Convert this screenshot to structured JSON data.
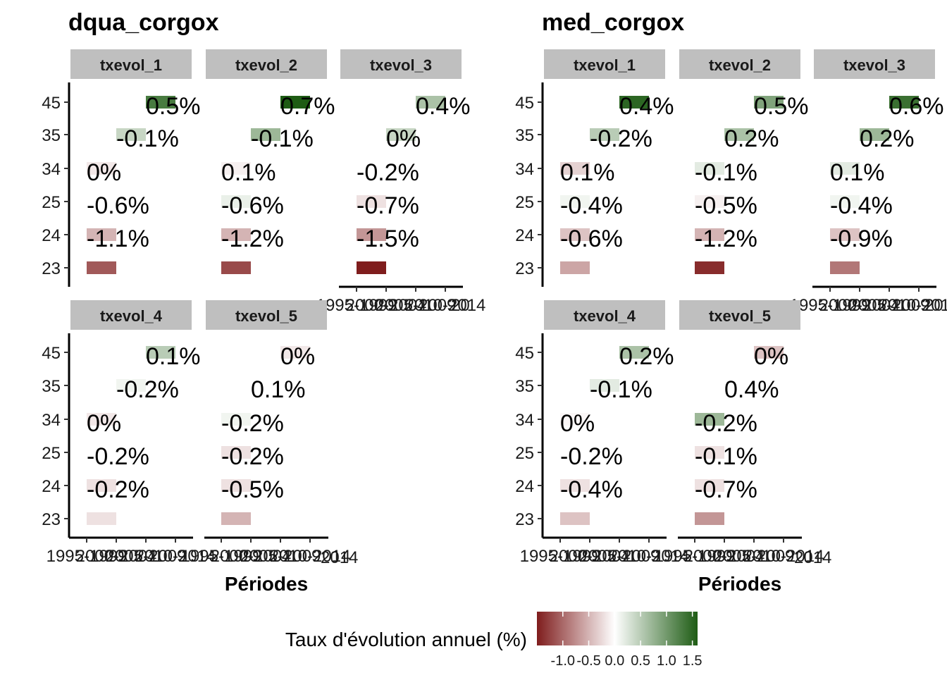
{
  "chart_data": {
    "type": "heatmap",
    "x_label": "Périodes",
    "y_categories": [
      "23",
      "24",
      "25",
      "34",
      "35",
      "45"
    ],
    "x_tick_labels": [
      "1995-1999",
      "2000-2004",
      "2005-2009",
      "2010-2014"
    ],
    "x_tick_labels_overflow": [
      "2014",
      "20"
    ],
    "legend": {
      "title": "Taux d'évolution annuel (%)",
      "ticks": [
        "-1.0",
        "-0.5",
        "0.0",
        "0.5",
        "1.0",
        "1.5"
      ],
      "tick_values": [
        -1.0,
        -0.5,
        0.0,
        0.5,
        1.0,
        1.5
      ],
      "range": [
        -1.5,
        1.6
      ],
      "colors": {
        "negative": "#7f1d1d",
        "zero": "#ffffff",
        "positive": "#1e5c14"
      }
    },
    "groups": [
      {
        "title": "dqua_corgox",
        "facets": [
          {
            "name": "txevol_1",
            "cells": [
              {
                "y": "45",
                "start": "2005-2009",
                "label": "0.5%",
                "value": 1.3
              },
              {
                "y": "35",
                "start": "2000-2004",
                "label": "-0.1%",
                "value": 0.4
              },
              {
                "y": "34",
                "start": "1995-1999",
                "label": "0%",
                "value": -0.15
              },
              {
                "y": "25",
                "start": "1995-1999",
                "label": "-0.6%",
                "value": 0.0
              },
              {
                "y": "24",
                "start": "1995-1999",
                "label": "-1.1%",
                "value": -0.5
              },
              {
                "y": "23",
                "start": "1995-1999",
                "label": "",
                "value": -1.1
              }
            ]
          },
          {
            "name": "txevol_2",
            "cells": [
              {
                "y": "45",
                "start": "2005-2009",
                "label": "0.7%",
                "value": 1.6
              },
              {
                "y": "35",
                "start": "2000-2004",
                "label": "-0.1%",
                "value": 0.7
              },
              {
                "y": "34",
                "start": "1995-1999",
                "label": "0.1%",
                "value": -0.1
              },
              {
                "y": "25",
                "start": "1995-1999",
                "label": "-0.6%",
                "value": 0.15
              },
              {
                "y": "24",
                "start": "1995-1999",
                "label": "-1.2%",
                "value": -0.5
              },
              {
                "y": "23",
                "start": "1995-1999",
                "label": "",
                "value": -1.2
              }
            ]
          },
          {
            "name": "txevol_3",
            "cells": [
              {
                "y": "45",
                "start": "2005-2009",
                "label": "0.4%",
                "value": 0.6
              },
              {
                "y": "35",
                "start": "2000-2004",
                "label": "0%",
                "value": 0.4
              },
              {
                "y": "34",
                "start": "1995-1999",
                "label": "-0.2%",
                "value": 0.0
              },
              {
                "y": "25",
                "start": "1995-1999",
                "label": "-0.7%",
                "value": -0.2
              },
              {
                "y": "24",
                "start": "1995-1999",
                "label": "-1.5%",
                "value": -0.7
              },
              {
                "y": "23",
                "start": "1995-1999",
                "label": "",
                "value": -1.5
              }
            ]
          },
          {
            "name": "txevol_4",
            "cells": [
              {
                "y": "45",
                "start": "2005-2009",
                "label": "0.1%",
                "value": 0.5
              },
              {
                "y": "35",
                "start": "2000-2004",
                "label": "-0.2%",
                "value": 0.1
              },
              {
                "y": "34",
                "start": "1995-1999",
                "label": "0%",
                "value": -0.15
              },
              {
                "y": "25",
                "start": "1995-1999",
                "label": "-0.2%",
                "value": 0.0
              },
              {
                "y": "24",
                "start": "1995-1999",
                "label": "-0.2%",
                "value": -0.2
              },
              {
                "y": "23",
                "start": "1995-1999",
                "label": "",
                "value": -0.2
              }
            ]
          },
          {
            "name": "txevol_5",
            "cells": [
              {
                "y": "45",
                "start": "2005-2009",
                "label": "0%",
                "value": -0.15
              },
              {
                "y": "35",
                "start": "2000-2004",
                "label": "0.1%",
                "value": 0.0
              },
              {
                "y": "34",
                "start": "1995-1999",
                "label": "-0.2%",
                "value": 0.1
              },
              {
                "y": "25",
                "start": "1995-1999",
                "label": "-0.2%",
                "value": -0.2
              },
              {
                "y": "24",
                "start": "1995-1999",
                "label": "-0.5%",
                "value": -0.2
              },
              {
                "y": "23",
                "start": "1995-1999",
                "label": "",
                "value": -0.5
              }
            ]
          }
        ]
      },
      {
        "title": "med_corgox",
        "facets": [
          {
            "name": "txevol_1",
            "cells": [
              {
                "y": "45",
                "start": "2005-2009",
                "label": "0.4%",
                "value": 1.5
              },
              {
                "y": "35",
                "start": "2000-2004",
                "label": "-0.2%",
                "value": 0.5
              },
              {
                "y": "34",
                "start": "1995-1999",
                "label": "0.1%",
                "value": -0.3
              },
              {
                "y": "25",
                "start": "1995-1999",
                "label": "-0.4%",
                "value": 0.1
              },
              {
                "y": "24",
                "start": "1995-1999",
                "label": "-0.6%",
                "value": -0.4
              },
              {
                "y": "23",
                "start": "1995-1999",
                "label": "",
                "value": -0.6
              }
            ]
          },
          {
            "name": "txevol_2",
            "cells": [
              {
                "y": "45",
                "start": "2005-2009",
                "label": "0.5%",
                "value": 0.9
              },
              {
                "y": "35",
                "start": "2000-2004",
                "label": "0.2%",
                "value": 0.6
              },
              {
                "y": "34",
                "start": "1995-1999",
                "label": "-0.1%",
                "value": 0.2
              },
              {
                "y": "25",
                "start": "1995-1999",
                "label": "-0.5%",
                "value": -0.1
              },
              {
                "y": "24",
                "start": "1995-1999",
                "label": "-1.2%",
                "value": -0.5
              },
              {
                "y": "23",
                "start": "1995-1999",
                "label": "",
                "value": -1.4
              }
            ]
          },
          {
            "name": "txevol_3",
            "cells": [
              {
                "y": "45",
                "start": "2005-2009",
                "label": "0.6%",
                "value": 1.4
              },
              {
                "y": "35",
                "start": "2000-2004",
                "label": "0.2%",
                "value": 0.7
              },
              {
                "y": "34",
                "start": "1995-1999",
                "label": "0.1%",
                "value": 0.2
              },
              {
                "y": "25",
                "start": "1995-1999",
                "label": "-0.4%",
                "value": 0.1
              },
              {
                "y": "24",
                "start": "1995-1999",
                "label": "-0.9%",
                "value": -0.4
              },
              {
                "y": "23",
                "start": "1995-1999",
                "label": "",
                "value": -0.9
              }
            ]
          },
          {
            "name": "txevol_4",
            "cells": [
              {
                "y": "45",
                "start": "2005-2009",
                "label": "0.2%",
                "value": 0.6
              },
              {
                "y": "35",
                "start": "2000-2004",
                "label": "-0.1%",
                "value": 0.2
              },
              {
                "y": "34",
                "start": "1995-1999",
                "label": "0%",
                "value": -0.05
              },
              {
                "y": "25",
                "start": "1995-1999",
                "label": "-0.2%",
                "value": 0.0
              },
              {
                "y": "24",
                "start": "1995-1999",
                "label": "-0.4%",
                "value": -0.2
              },
              {
                "y": "23",
                "start": "1995-1999",
                "label": "",
                "value": -0.4
              }
            ]
          },
          {
            "name": "txevol_5",
            "cells": [
              {
                "y": "45",
                "start": "2005-2009",
                "label": "0%",
                "value": -0.4
              },
              {
                "y": "35",
                "start": "2000-2004",
                "label": "0.4%",
                "value": 0.0
              },
              {
                "y": "34",
                "start": "1995-1999",
                "label": "-0.2%",
                "value": 0.7
              },
              {
                "y": "25",
                "start": "1995-1999",
                "label": "-0.1%",
                "value": -0.2
              },
              {
                "y": "24",
                "start": "1995-1999",
                "label": "-0.7%",
                "value": -0.2
              },
              {
                "y": "23",
                "start": "1995-1999",
                "label": "",
                "value": -0.7
              }
            ]
          }
        ]
      }
    ]
  }
}
